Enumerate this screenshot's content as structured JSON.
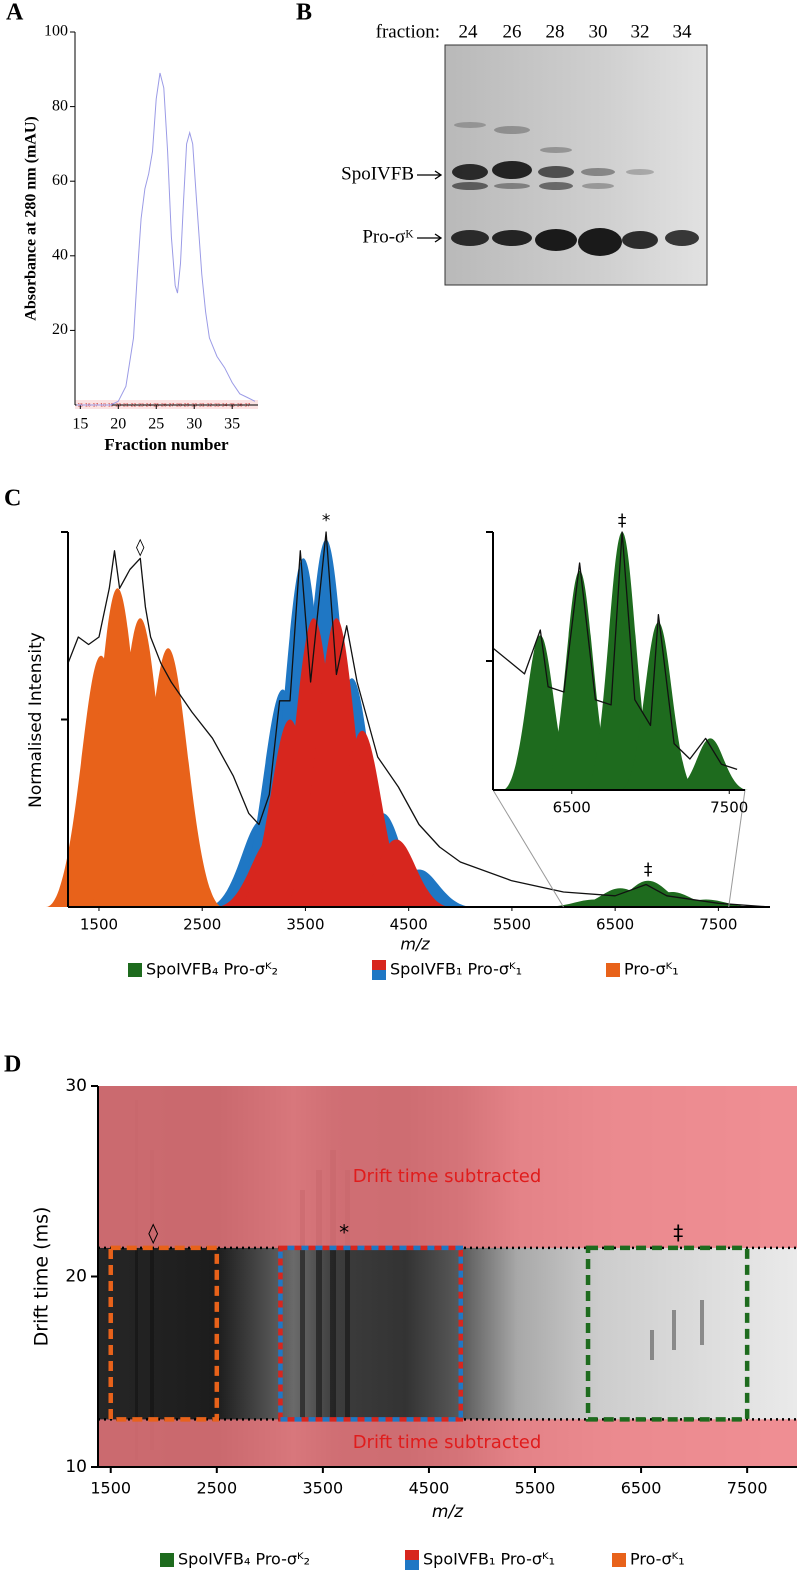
{
  "panel_labels": [
    "A",
    "B",
    "C",
    "D"
  ],
  "gel": {
    "prefix": "fraction:",
    "lanes": [
      "24",
      "26",
      "28",
      "30",
      "32",
      "34"
    ],
    "bands": [
      "SpoIVFB",
      "Pro-σᴷ"
    ]
  },
  "chart_data": [
    {
      "type": "line",
      "x_label": "Fraction number",
      "y_label": "Absorbance at 280 nm (mAU)",
      "x": [
        14.5,
        17,
        19,
        20,
        21,
        22,
        22.5,
        23,
        23.5,
        24,
        24.5,
        25,
        25.5,
        26,
        26.5,
        27,
        27.5,
        27.8,
        28.2,
        28.6,
        29,
        29.4,
        29.8,
        30.3,
        31,
        31.5,
        32,
        33,
        34,
        35,
        36,
        37,
        38
      ],
      "values": [
        0,
        0,
        0,
        1,
        5,
        18,
        35,
        50,
        58,
        62,
        68,
        82,
        89,
        85,
        68,
        45,
        32,
        30,
        38,
        55,
        70,
        73,
        70,
        55,
        35,
        25,
        18,
        13,
        10,
        6,
        3,
        2,
        1
      ],
      "color": "#9b9be6",
      "xlim": [
        14.3,
        38.4
      ],
      "ylim": [
        0,
        100
      ],
      "xticks": [
        15,
        20,
        25,
        30,
        35
      ],
      "yticks": [
        20,
        40,
        60,
        80,
        100
      ],
      "fraction_markers": [
        "15",
        "16",
        "17",
        "18",
        "19",
        "20",
        "21",
        "22",
        "23",
        "24",
        "25",
        "26",
        "27",
        "28",
        "29",
        "30",
        "31",
        "32",
        "33",
        "34",
        "35",
        "36",
        "37"
      ]
    },
    {
      "type": "spectrum",
      "x_label": "m/z",
      "y_label": "Normalised Intensity",
      "x": [
        1200,
        1300,
        1400,
        1500,
        1600,
        1650,
        1700,
        1800,
        1900,
        1950,
        2000,
        2100,
        2200,
        2400,
        2600,
        2800,
        2950,
        3050,
        3150,
        3250,
        3350,
        3450,
        3550,
        3700,
        3800,
        3900,
        4000,
        4200,
        4400,
        4600,
        4800,
        5000,
        5500,
        6000,
        6500,
        6800,
        7000,
        7500,
        8000
      ],
      "values": [
        0.65,
        0.72,
        0.7,
        0.72,
        0.85,
        0.95,
        0.85,
        0.9,
        0.93,
        0.8,
        0.72,
        0.65,
        0.6,
        0.52,
        0.45,
        0.35,
        0.25,
        0.22,
        0.3,
        0.55,
        0.55,
        0.95,
        0.6,
        1.0,
        0.62,
        0.75,
        0.6,
        0.4,
        0.32,
        0.22,
        0.16,
        0.12,
        0.07,
        0.04,
        0.03,
        0.06,
        0.03,
        0.01,
        0.0
      ],
      "color": "#111111",
      "xlim": [
        1200,
        8000
      ],
      "ylim": [
        0,
        1
      ],
      "xticks": [
        1500,
        2500,
        3500,
        4500,
        5500,
        6500,
        7500
      ],
      "yticks": [
        0.5,
        1
      ],
      "series": [
        {
          "name": "SpoIVFB₄ Pro-σᴷ₂",
          "color": "#1e6b1e",
          "x": [
            6300,
            6550,
            6820,
            7050,
            7380
          ],
          "values": [
            0.02,
            0.05,
            0.07,
            0.04,
            0.02
          ]
        },
        {
          "name": "SpoIVFB₁ Pro-σᴷ₁",
          "color": "#d7261e",
          "x": [
            3160,
            3350,
            3580,
            3800,
            4050,
            4380
          ],
          "values": [
            0.18,
            0.5,
            0.77,
            0.77,
            0.47,
            0.18
          ],
          "paired": {
            "color": "#1f77c4",
            "x": [
              3070,
              3280,
              3480,
              3700,
              3950,
              4250,
              4600
            ],
            "values": [
              0.23,
              0.58,
              0.93,
              0.98,
              0.61,
              0.25,
              0.1
            ]
          }
        },
        {
          "name": "Pro-σᴷ₁",
          "color": "#e8621a",
          "x": [
            1520,
            1680,
            1900,
            2170
          ],
          "values": [
            0.67,
            0.85,
            0.77,
            0.69
          ]
        }
      ],
      "annotations": [
        {
          "text": "◊",
          "x": 1900
        },
        {
          "text": "*",
          "x": 3700
        },
        {
          "text": "‡",
          "x": 6820
        }
      ]
    },
    {
      "type": "spectrum",
      "x": [
        6000,
        6100,
        6200,
        6300,
        6350,
        6450,
        6550,
        6650,
        6750,
        6820,
        6900,
        7000,
        7050,
        7150,
        7250,
        7350,
        7450,
        7550
      ],
      "values": [
        0.55,
        0.5,
        0.45,
        0.62,
        0.4,
        0.38,
        0.88,
        0.35,
        0.33,
        1.0,
        0.35,
        0.25,
        0.68,
        0.18,
        0.12,
        0.2,
        0.1,
        0.08
      ],
      "color": "#111111",
      "xlim": [
        6000,
        7600
      ],
      "ylim": [
        0,
        1
      ],
      "xticks": [
        6500,
        7500
      ],
      "yticks": [
        0.5,
        1
      ],
      "series": [
        {
          "color": "#1e6b1e",
          "x": [
            6300,
            6550,
            6820,
            7050,
            7380
          ],
          "values": [
            0.6,
            0.85,
            1.0,
            0.65,
            0.2
          ]
        }
      ],
      "annotations": [
        {
          "text": "‡",
          "x": 6820
        }
      ]
    },
    {
      "type": "mobility",
      "x_label": "m/z",
      "y_label": "Drift time (ms)",
      "xlim": [
        1380,
        7970
      ],
      "ylim": [
        10,
        30
      ],
      "xticks": [
        1500,
        2500,
        3500,
        4500,
        5500,
        6500,
        7500
      ],
      "yticks": [
        10,
        20,
        30
      ],
      "window": [
        12.5,
        21.5
      ],
      "shade_label": "Drift time subtracted",
      "regions": [
        {
          "name": "SpoIVFB₄ Pro-σᴷ₂",
          "colors": [
            "#1e6b1e"
          ],
          "x": [
            6000,
            7500
          ]
        },
        {
          "name": "SpoIVFB₁ Pro-σᴷ₁",
          "colors": [
            "#d7261e",
            "#1f77c4"
          ],
          "x": [
            3100,
            4800
          ]
        },
        {
          "name": "Pro-σᴷ₁",
          "colors": [
            "#e8621a"
          ],
          "x": [
            1500,
            2500
          ]
        }
      ],
      "annotations": [
        {
          "text": "◊",
          "x": 1900
        },
        {
          "text": "*",
          "x": 3700
        },
        {
          "text": "‡",
          "x": 6850
        }
      ]
    }
  ]
}
